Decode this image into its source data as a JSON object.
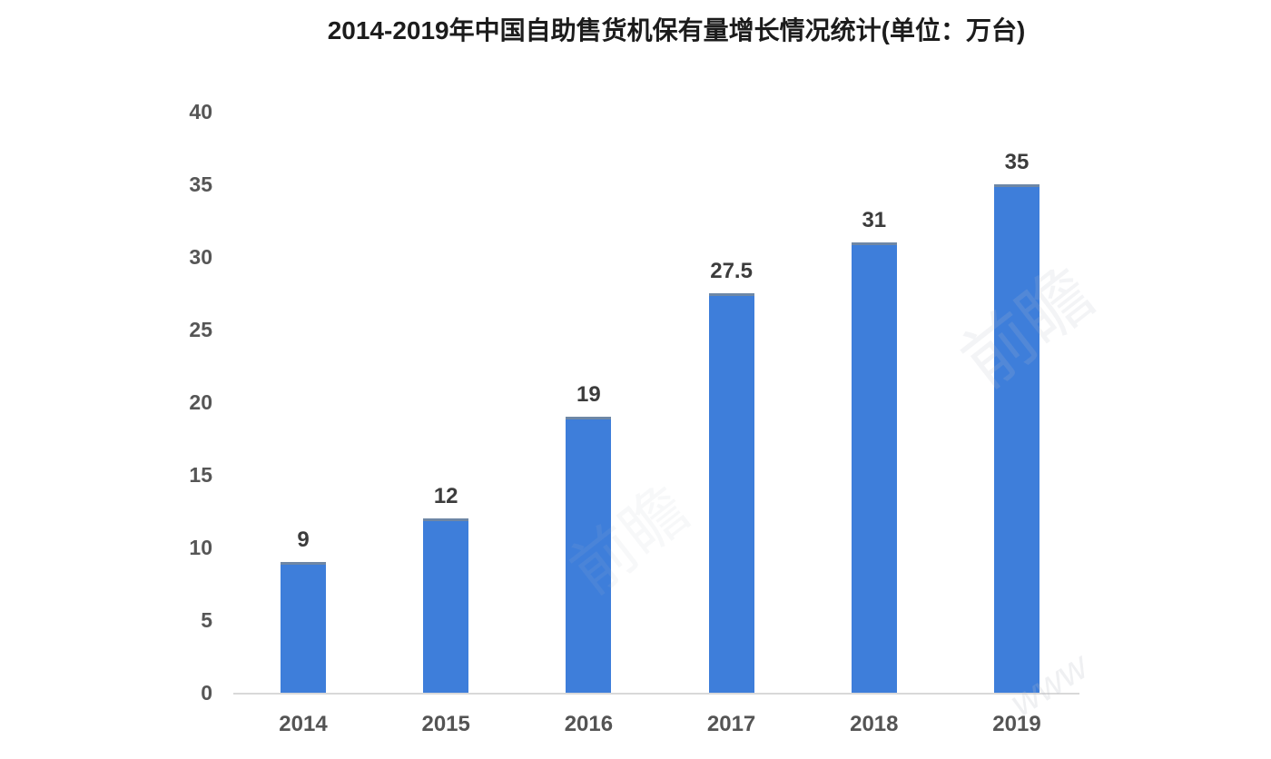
{
  "chart_data": {
    "type": "bar",
    "title": "2014-2019年中国自助售货机保有量增长情况统计(单位：万台)",
    "categories": [
      "2014",
      "2015",
      "2016",
      "2017",
      "2018",
      "2019"
    ],
    "values": [
      9,
      12,
      19,
      27.5,
      31,
      35
    ],
    "value_labels": [
      "9",
      "12",
      "19",
      "27.5",
      "31",
      "35"
    ],
    "xlabel": "",
    "ylabel": "",
    "ylim": [
      0,
      40
    ],
    "yticks": [
      0,
      5,
      10,
      15,
      20,
      25,
      30,
      35,
      40
    ],
    "grid": false,
    "legend_position": "none",
    "bar_color": "#3e7eda",
    "axis_line_color": "#d9d9d9"
  },
  "watermarks": {
    "glyph": "前瞻",
    "script": "www"
  }
}
